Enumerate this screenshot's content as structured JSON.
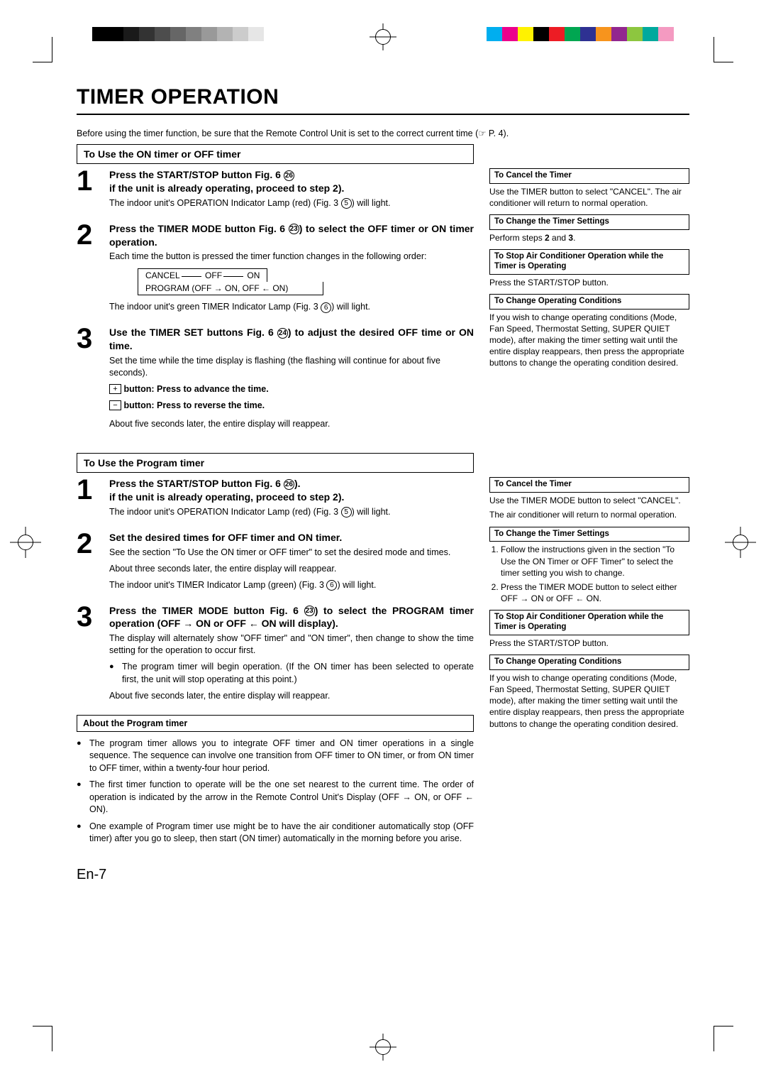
{
  "registration": {
    "gray_swatches": [
      "#000000",
      "#000000",
      "#1a1a1a",
      "#333333",
      "#4d4d4d",
      "#666666",
      "#808080",
      "#999999",
      "#b3b3b3",
      "#cccccc",
      "#e6e6e6"
    ],
    "color_swatches": [
      "#00aeef",
      "#ec008c",
      "#fff200",
      "#000000",
      "#ed1c24",
      "#00a651",
      "#2e3192",
      "#f7941d",
      "#92278f",
      "#8dc63f",
      "#00a99d",
      "#f49ac1"
    ]
  },
  "title": "TIMER OPERATION",
  "intro_a": "Before using the timer function, be sure that the Remote Control Unit is set to the correct current time (",
  "intro_b": " P. 4).",
  "pointer": "☞",
  "sec1": {
    "header": "To Use the ON timer or OFF timer",
    "s1": {
      "lead_a": "Press the START/STOP button Fig. 6 ",
      "circ1": "26",
      "lead_b": "if the unit is already operating, proceed to step 2).",
      "p1_a": "The indoor unit's OPERATION Indicator Lamp (red) (Fig. 3 ",
      "p1_circ": "5",
      "p1_b": ") will light."
    },
    "s2": {
      "lead_a": "Press the TIMER MODE button Fig. 6 ",
      "circ": "23",
      "lead_b": ") to select the OFF timer or ON timer operation.",
      "p1": "Each time the button is pressed the timer function changes in the following order:",
      "flow_r1_a": "CANCEL",
      "flow_r1_b": "OFF",
      "flow_r1_c": "ON",
      "flow_r2": "PROGRAM (OFF → ON, OFF ← ON)",
      "p2_a": "The indoor unit's green TIMER Indicator Lamp (Fig. 3 ",
      "p2_circ": "6",
      "p2_b": ") will light."
    },
    "s3": {
      "lead_a": "Use the TIMER SET buttons Fig. 6 ",
      "circ": "24",
      "lead_b": ") to adjust the desired OFF time or ON time.",
      "p1": "Set the time while the time display is flashing (the flashing will continue for about five seconds).",
      "plus": "+",
      "plus_txt": " button: Press to advance the time.",
      "minus": "−",
      "minus_txt": " button: Press to reverse the time.",
      "p2": "About five seconds later, the entire display will reappear."
    }
  },
  "side1": {
    "h1": "To Cancel the Timer",
    "p1": "Use the TIMER button to select \"CANCEL\". The air conditioner will return to normal operation.",
    "h2": "To Change the Timer Settings",
    "p2": "Perform steps 2 and 3.",
    "h3": "To Stop Air Conditioner Operation while the Timer is Operating",
    "p3": "Press the START/STOP button.",
    "h4": "To Change Operating Conditions",
    "p4": "If you wish to change operating conditions (Mode, Fan Speed, Thermostat Setting, SUPER QUIET mode), after making the timer setting wait until the entire display reappears, then press the appropriate buttons to change the operating condition desired."
  },
  "sec2": {
    "header": "To Use the Program timer",
    "s1": {
      "lead_a": "Press the START/STOP button Fig. 6 ",
      "circ": "26",
      "lead_b": ").",
      "lead_c": "if the unit is already operating, proceed to step 2).",
      "p1_a": "The indoor unit's OPERATION Indicator Lamp (red) (Fig. 3 ",
      "p1_circ": "5",
      "p1_b": ") will light."
    },
    "s2": {
      "lead": "Set the desired times for OFF timer and ON timer.",
      "p1": "See the section \"To Use the ON timer or OFF timer\" to set the desired mode and times.",
      "p2": "About three seconds later, the entire display will reappear.",
      "p3_a": "The indoor unit's TIMER Indicator Lamp (green) (Fig. 3 ",
      "p3_circ": "6",
      "p3_b": ") will light."
    },
    "s3": {
      "lead_a": "Press the TIMER MODE button Fig. 6 ",
      "circ": "23",
      "lead_b": ") to select the PROGRAM timer operation (OFF → ON or OFF ← ON will display).",
      "p1": "The display will alternately show \"OFF timer\" and \"ON timer\", then change to show the time setting for the operation to occur first.",
      "b1": "The program timer will begin operation. (If the ON timer has been selected to operate first, the unit will stop operating at this point.)",
      "p2": "About five seconds later, the entire display will reappear."
    },
    "about_h": "About the Program timer",
    "about_b1": "The program timer allows you to integrate OFF timer and ON timer operations in a single sequence. The sequence can involve one transition from OFF timer to ON timer, or from ON timer to OFF timer, within a twenty-four hour period.",
    "about_b2": "The first timer function to operate will be the one set nearest to the current time. The order of operation is indicated by the arrow in the Remote Control Unit's Display (OFF → ON, or OFF ← ON).",
    "about_b3": "One example of Program timer use might be to have the air conditioner automatically stop (OFF timer) after you go to sleep, then start (ON timer) automatically in the morning before you arise."
  },
  "side2": {
    "h1": "To Cancel the Timer",
    "p1": "Use the TIMER MODE button to select \"CANCEL\".",
    "p1b": "The air conditioner will return to normal operation.",
    "h2": "To Change the Timer Settings",
    "li1": "Follow the instructions given in the section \"To Use the ON Timer or OFF Timer\" to select the timer setting you wish to change.",
    "li2": "Press the TIMER MODE button to select either OFF → ON or OFF ← ON.",
    "h3": "To Stop Air Conditioner Operation while the Timer is Operating",
    "p3": "Press the START/STOP button.",
    "h4": "To Change Operating Conditions",
    "p4": "If you wish to change operating conditions (Mode, Fan Speed, Thermostat Setting, SUPER QUIET mode), after making the timer setting wait until the entire display reappears, then press the appropriate buttons to change the operating condition desired."
  },
  "page_num": "En-7"
}
